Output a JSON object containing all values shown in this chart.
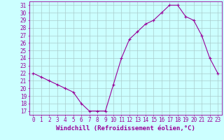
{
  "x": [
    0,
    1,
    2,
    3,
    4,
    5,
    6,
    7,
    8,
    9,
    10,
    11,
    12,
    13,
    14,
    15,
    16,
    17,
    18,
    19,
    20,
    21,
    22,
    23
  ],
  "y": [
    22,
    21.5,
    21,
    20.5,
    20,
    19.5,
    18,
    17,
    17,
    17,
    20.5,
    24,
    26.5,
    27.5,
    28.5,
    29,
    30,
    31,
    31,
    29.5,
    29,
    27,
    24,
    22
  ],
  "line_color": "#990099",
  "marker": "+",
  "marker_size": 3,
  "bg_color": "#ccffff",
  "grid_color": "#aacccc",
  "ylabel_ticks": [
    17,
    18,
    19,
    20,
    21,
    22,
    23,
    24,
    25,
    26,
    27,
    28,
    29,
    30,
    31
  ],
  "xlabel": "Windchill (Refroidissement éolien,°C)",
  "xlim": [
    -0.5,
    23.5
  ],
  "ylim": [
    16.5,
    31.5
  ],
  "tick_fontsize": 5.5,
  "xlabel_fontsize": 6.5
}
